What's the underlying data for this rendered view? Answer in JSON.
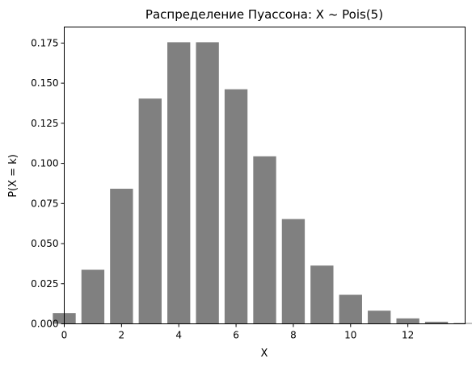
{
  "chart_data": {
    "type": "bar",
    "title": "Распределение Пуассона: X ~ Pois(5)",
    "xlabel": "X",
    "ylabel": "P(X = k)",
    "x": [
      0,
      1,
      2,
      3,
      4,
      5,
      6,
      7,
      8,
      9,
      10,
      11,
      12,
      13,
      14
    ],
    "values": [
      0.0067,
      0.0337,
      0.0842,
      0.1404,
      0.1755,
      0.1755,
      0.1462,
      0.1044,
      0.0653,
      0.0363,
      0.0181,
      0.0082,
      0.0034,
      0.0013,
      0.0005
    ],
    "xlim": [
      0,
      14
    ],
    "ylim": [
      0,
      0.185
    ],
    "xticks": [
      0,
      2,
      4,
      6,
      8,
      10,
      12
    ],
    "xtick_labels": [
      "0",
      "2",
      "4",
      "6",
      "8",
      "10",
      "12"
    ],
    "yticks": [
      0,
      0.025,
      0.05,
      0.075,
      0.1,
      0.125,
      0.15,
      0.175
    ],
    "ytick_labels": [
      "0.000",
      "0.025",
      "0.050",
      "0.075",
      "0.100",
      "0.125",
      "0.150",
      "0.175"
    ],
    "bar_color": "#808080",
    "grid": false,
    "legend": "none"
  }
}
